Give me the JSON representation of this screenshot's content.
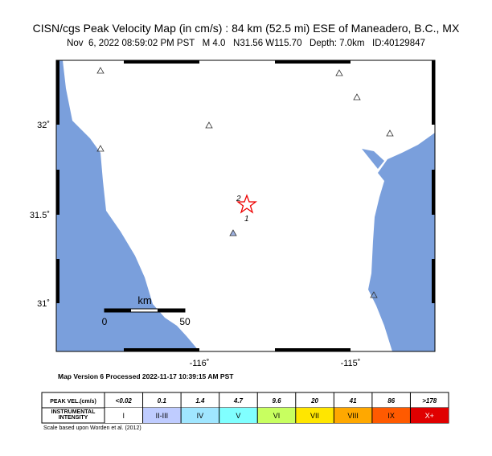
{
  "header": {
    "title": "CISN/cgs Peak Velocity Map (in cm/s) : 84 km (52.5 mi) ESE of Maneadero, B.C., MX",
    "subtitle": "Nov  6, 2022 08:59:02 PM PST   M 4.0   N31.56 W115.70   Depth: 7.0km   ID:40129847"
  },
  "map": {
    "lat_labels": [
      "32˚",
      "31.5˚",
      "31˚"
    ],
    "lon_labels": [
      "-116˚",
      "-115˚"
    ],
    "station_labels": [
      "2",
      "1"
    ],
    "scale_bar": {
      "unit": "km",
      "start": "0",
      "end": "50"
    }
  },
  "processed": "Map Version 6 Processed 2022-11-17 10:39:15 AM PST",
  "legend": {
    "row_headers": [
      "PEAK VEL.(cm/s)",
      "INSTRUMENTAL INTENSITY"
    ],
    "velocities": [
      "<0.02",
      "0.1",
      "1.4",
      "4.7",
      "9.6",
      "20",
      "41",
      "86",
      ">178"
    ],
    "intensities": [
      "I",
      "II-III",
      "IV",
      "V",
      "VI",
      "VII",
      "VIII",
      "IX",
      "X+"
    ]
  },
  "footnote": "Scale based upon Worden et al. (2012)"
}
